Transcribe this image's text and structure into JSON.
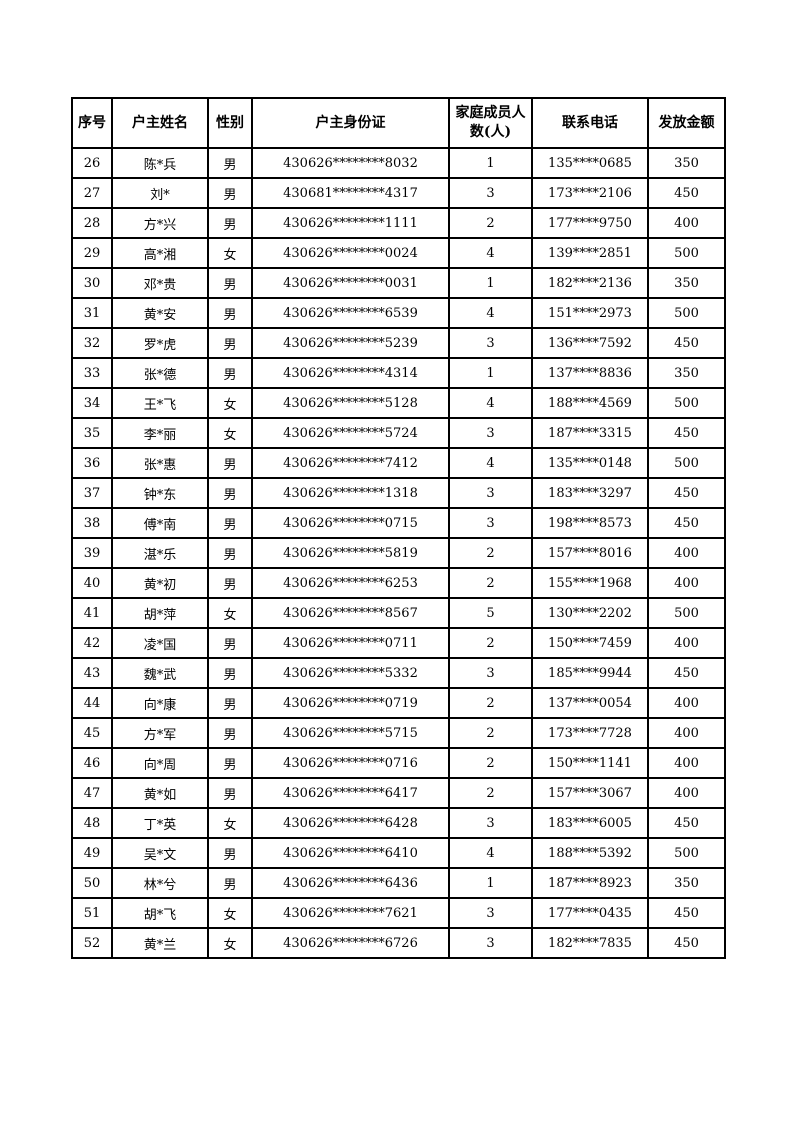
{
  "table": {
    "headers": [
      "序号",
      "户主姓名",
      "性别",
      "户主身份证",
      "家庭成员人数(人)",
      "联系电话",
      "发放金额"
    ],
    "rows": [
      [
        "26",
        "陈*兵",
        "男",
        "430626********8032",
        "1",
        "135****0685",
        "350"
      ],
      [
        "27",
        "刘*",
        "男",
        "430681********4317",
        "3",
        "173****2106",
        "450"
      ],
      [
        "28",
        "方*兴",
        "男",
        "430626********1111",
        "2",
        "177****9750",
        "400"
      ],
      [
        "29",
        "高*湘",
        "女",
        "430626********0024",
        "4",
        "139****2851",
        "500"
      ],
      [
        "30",
        "邓*贵",
        "男",
        "430626********0031",
        "1",
        "182****2136",
        "350"
      ],
      [
        "31",
        "黄*安",
        "男",
        "430626********6539",
        "4",
        "151****2973",
        "500"
      ],
      [
        "32",
        "罗*虎",
        "男",
        "430626********5239",
        "3",
        "136****7592",
        "450"
      ],
      [
        "33",
        "张*德",
        "男",
        "430626********4314",
        "1",
        "137****8836",
        "350"
      ],
      [
        "34",
        "王*飞",
        "女",
        "430626********5128",
        "4",
        "188****4569",
        "500"
      ],
      [
        "35",
        "李*丽",
        "女",
        "430626********5724",
        "3",
        "187****3315",
        "450"
      ],
      [
        "36",
        "张*惠",
        "男",
        "430626********7412",
        "4",
        "135****0148",
        "500"
      ],
      [
        "37",
        "钟*东",
        "男",
        "430626********1318",
        "3",
        "183****3297",
        "450"
      ],
      [
        "38",
        "傅*南",
        "男",
        "430626********0715",
        "3",
        "198****8573",
        "450"
      ],
      [
        "39",
        "湛*乐",
        "男",
        "430626********5819",
        "2",
        "157****8016",
        "400"
      ],
      [
        "40",
        "黄*初",
        "男",
        "430626********6253",
        "2",
        "155****1968",
        "400"
      ],
      [
        "41",
        "胡*萍",
        "女",
        "430626********8567",
        "5",
        "130****2202",
        "500"
      ],
      [
        "42",
        "凌*国",
        "男",
        "430626********0711",
        "2",
        "150****7459",
        "400"
      ],
      [
        "43",
        "魏*武",
        "男",
        "430626********5332",
        "3",
        "185****9944",
        "450"
      ],
      [
        "44",
        "向*康",
        "男",
        "430626********0719",
        "2",
        "137****0054",
        "400"
      ],
      [
        "45",
        "方*军",
        "男",
        "430626********5715",
        "2",
        "173****7728",
        "400"
      ],
      [
        "46",
        "向*周",
        "男",
        "430626********0716",
        "2",
        "150****1141",
        "400"
      ],
      [
        "47",
        "黄*如",
        "男",
        "430626********6417",
        "2",
        "157****3067",
        "400"
      ],
      [
        "48",
        "丁*英",
        "女",
        "430626********6428",
        "3",
        "183****6005",
        "450"
      ],
      [
        "49",
        "吴*文",
        "男",
        "430626********6410",
        "4",
        "188****5392",
        "500"
      ],
      [
        "50",
        "林*兮",
        "男",
        "430626********6436",
        "1",
        "187****8923",
        "350"
      ],
      [
        "51",
        "胡*飞",
        "女",
        "430626********7621",
        "3",
        "177****0435",
        "450"
      ],
      [
        "52",
        "黄*兰",
        "女",
        "430626********6726",
        "3",
        "182****7835",
        "450"
      ]
    ],
    "colors": {
      "border": "#000000",
      "text": "#000000",
      "background": "#ffffff"
    }
  }
}
